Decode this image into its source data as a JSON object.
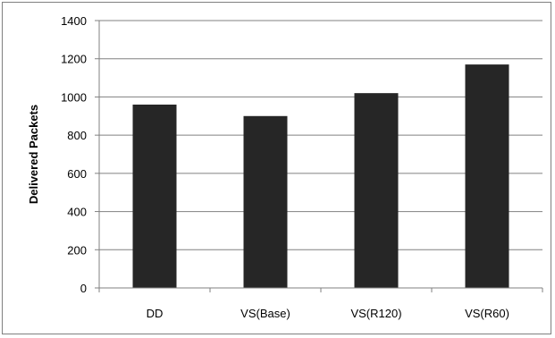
{
  "chart_data": {
    "type": "bar",
    "title": "",
    "xlabel": "",
    "ylabel": "Delivered Packets",
    "categories": [
      "DD",
      "VS(Base)",
      "VS(R120)",
      "VS(R60)"
    ],
    "values": [
      960,
      900,
      1020,
      1170
    ],
    "ylim": [
      0,
      1400
    ],
    "yticks": [
      0,
      200,
      400,
      600,
      800,
      1000,
      1200,
      1400
    ],
    "grid": true,
    "legend": "none",
    "bar_color": "#262626",
    "grid_color": "#808080"
  }
}
